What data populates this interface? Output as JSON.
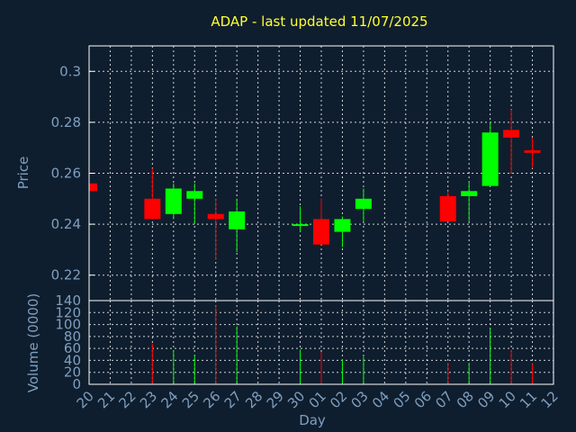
{
  "chart_data": [
    {
      "type": "candlestick",
      "title": "ADAP - last updated 11/07/2025",
      "ylabel": "Price",
      "ylim": [
        0.21,
        0.31
      ],
      "yticks": [
        "0.22",
        "0.24",
        "0.26",
        "0.28",
        "0.3"
      ],
      "grid": true,
      "up_color": "#00ff00",
      "down_color": "#ff0000",
      "candles": [
        {
          "day": "20",
          "open": 0.256,
          "high": 0.256,
          "low": 0.253,
          "close": 0.253
        },
        {
          "day": "23",
          "open": 0.25,
          "high": 0.262,
          "low": 0.242,
          "close": 0.242
        },
        {
          "day": "24",
          "open": 0.244,
          "high": 0.256,
          "low": 0.242,
          "close": 0.254
        },
        {
          "day": "25",
          "open": 0.25,
          "high": 0.256,
          "low": 0.24,
          "close": 0.253
        },
        {
          "day": "26",
          "open": 0.244,
          "high": 0.25,
          "low": 0.226,
          "close": 0.242
        },
        {
          "day": "27",
          "open": 0.238,
          "high": 0.25,
          "low": 0.229,
          "close": 0.245
        },
        {
          "day": "30",
          "open": 0.2395,
          "high": 0.247,
          "low": 0.237,
          "close": 0.24
        },
        {
          "day": "01",
          "open": 0.242,
          "high": 0.25,
          "low": 0.232,
          "close": 0.232
        },
        {
          "day": "02",
          "open": 0.237,
          "high": 0.243,
          "low": 0.231,
          "close": 0.242
        },
        {
          "day": "03",
          "open": 0.246,
          "high": 0.254,
          "low": 0.241,
          "close": 0.25
        },
        {
          "day": "07",
          "open": 0.251,
          "high": 0.253,
          "low": 0.241,
          "close": 0.241
        },
        {
          "day": "08",
          "open": 0.251,
          "high": 0.257,
          "low": 0.241,
          "close": 0.253
        },
        {
          "day": "09",
          "open": 0.255,
          "high": 0.28,
          "low": 0.255,
          "close": 0.276
        },
        {
          "day": "10",
          "open": 0.277,
          "high": 0.285,
          "low": 0.26,
          "close": 0.274
        },
        {
          "day": "11",
          "open": 0.269,
          "high": 0.274,
          "low": 0.262,
          "close": 0.268
        }
      ]
    },
    {
      "type": "bar",
      "ylabel": "Volume (0000)",
      "xlabel": "Day",
      "ylim": [
        0,
        140
      ],
      "yticks": [
        "0",
        "20",
        "40",
        "60",
        "80",
        "100",
        "120",
        "140"
      ],
      "categories": [
        "20",
        "21",
        "22",
        "23",
        "24",
        "25",
        "26",
        "27",
        "28",
        "29",
        "30",
        "01",
        "02",
        "03",
        "04",
        "05",
        "06",
        "07",
        "08",
        "09",
        "10",
        "11",
        "12"
      ],
      "bars": [
        {
          "day": "23",
          "value": 68,
          "color": "#ff0000"
        },
        {
          "day": "24",
          "value": 57,
          "color": "#00ff00"
        },
        {
          "day": "25",
          "value": 49,
          "color": "#00ff00"
        },
        {
          "day": "26",
          "value": 132,
          "color": "#ff0000"
        },
        {
          "day": "27",
          "value": 97,
          "color": "#00ff00"
        },
        {
          "day": "30",
          "value": 58,
          "color": "#00ff00"
        },
        {
          "day": "01",
          "value": 54,
          "color": "#ff0000"
        },
        {
          "day": "02",
          "value": 42,
          "color": "#00ff00"
        },
        {
          "day": "03",
          "value": 46,
          "color": "#00ff00"
        },
        {
          "day": "07",
          "value": 36,
          "color": "#ff0000"
        },
        {
          "day": "08",
          "value": 36,
          "color": "#00ff00"
        },
        {
          "day": "09",
          "value": 94,
          "color": "#00ff00"
        },
        {
          "day": "10",
          "value": 57,
          "color": "#ff0000"
        },
        {
          "day": "11",
          "value": 34,
          "color": "#ff0000"
        }
      ]
    }
  ],
  "colors": {
    "background": "#0f1e2e",
    "text": "#7f9fc0",
    "title": "#ffff33",
    "grid": "#ffffff"
  }
}
